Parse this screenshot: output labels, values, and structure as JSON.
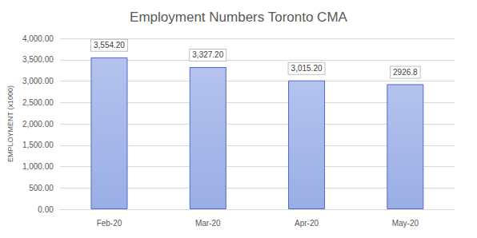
{
  "chart_data": {
    "type": "bar",
    "title": "Employment Numbers Toronto CMA",
    "y_label": "EMPLOYMENT (x1000)",
    "categories": [
      "Feb-20",
      "Mar-20",
      "Apr-20",
      "May-20"
    ],
    "values": [
      3554.2,
      3327.2,
      3015.2,
      2926.8
    ],
    "value_labels": [
      "3,554.20",
      "3,327.20",
      "3,015.20",
      "2926.8"
    ],
    "color": "#9aaee6",
    "ylim": [
      0,
      4000
    ],
    "yticks": [
      {
        "value": 0,
        "label": "0.00"
      },
      {
        "value": 500,
        "label": "500.00"
      },
      {
        "value": 1000,
        "label": "1,000.00"
      },
      {
        "value": 1500,
        "label": "1,500.00"
      },
      {
        "value": 2000,
        "label": "2,000.00"
      },
      {
        "value": 2500,
        "label": "2,500.00"
      },
      {
        "value": 3000,
        "label": "3,000.00"
      },
      {
        "value": 3500,
        "label": "3,500.00"
      },
      {
        "value": 4000,
        "label": "4,000.00"
      }
    ],
    "grid": true,
    "data_labels": true
  }
}
